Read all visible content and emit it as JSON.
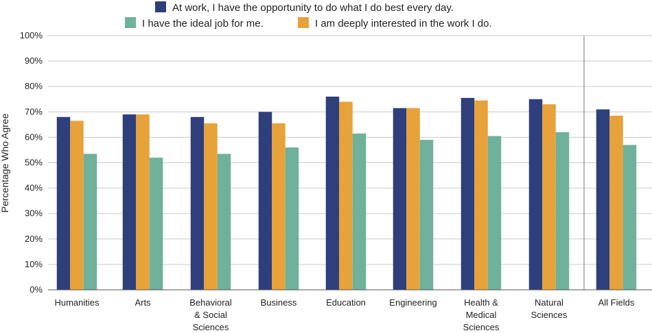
{
  "chart_data": {
    "type": "bar",
    "title": "",
    "xlabel": "",
    "ylabel": "Percentage Who Agree",
    "ylim": [
      0,
      100
    ],
    "yticks": [
      "0%",
      "10%",
      "20%",
      "30%",
      "40%",
      "50%",
      "60%",
      "70%",
      "80%",
      "90%",
      "100%"
    ],
    "grid": true,
    "legend_position": "top",
    "categories": [
      [
        "Humanities"
      ],
      [
        "Arts"
      ],
      [
        "Behavioral",
        "& Social",
        "Sciences"
      ],
      [
        "Business"
      ],
      [
        "Education"
      ],
      [
        "Engineering"
      ],
      [
        "Health &",
        "Medical",
        "Sciences"
      ],
      [
        "Natural",
        "Sciences"
      ],
      [
        "All Fields"
      ]
    ],
    "series": [
      {
        "name": "At work, I have the opportunity to do what I do best every day.",
        "color": "#2e3f7c",
        "values": [
          68,
          69,
          68,
          70,
          76,
          71.5,
          75.5,
          75,
          71
        ]
      },
      {
        "name": "I am deeply interested in the work I do.",
        "color": "#e8a23a",
        "values": [
          66.5,
          69,
          65.5,
          65.5,
          74,
          71.5,
          74.5,
          73,
          68.5
        ]
      },
      {
        "name": "I have the ideal job for me.",
        "color": "#6fb19b",
        "values": [
          53.5,
          52,
          53.5,
          56,
          61.5,
          59,
          60.5,
          62,
          57
        ]
      }
    ]
  }
}
